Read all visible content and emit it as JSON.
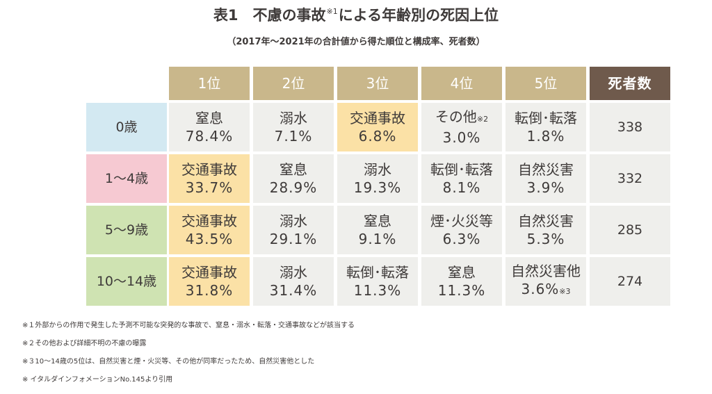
{
  "title": {
    "main": "表1　不慮の事故",
    "note_mark": "※1",
    "rest": "による年齢別の死因上位"
  },
  "subtitle": "（2017年～2021年の合計値から得た順位と構成率、死者数）",
  "columns": [
    "1位",
    "2位",
    "3位",
    "4位",
    "5位",
    "死者数"
  ],
  "colors": {
    "header_rank": "#c9b78b",
    "header_deaths": "#6f5a4c",
    "cell": "#efefec",
    "traffic_highlight": "#fbe1a6",
    "age_0": "#d3e9f2",
    "age_1_4": "#f6c9d2",
    "age_5_9": "#cfe3b2",
    "age_10_14": "#cfe3b2"
  },
  "rows": [
    {
      "age": "0歳",
      "causes": [
        {
          "cause": "窒息",
          "pct": "78.4%",
          "note": ""
        },
        {
          "cause": "溺水",
          "pct": "7.1%",
          "note": ""
        },
        {
          "cause": "交通事故",
          "pct": "6.8%",
          "note": ""
        },
        {
          "cause": "その他",
          "pct": "3.0%",
          "note": "※2"
        },
        {
          "cause": "転倒･転落",
          "pct": "1.8%",
          "note": ""
        }
      ],
      "deaths": "338"
    },
    {
      "age": "1～4歳",
      "causes": [
        {
          "cause": "交通事故",
          "pct": "33.7%",
          "note": ""
        },
        {
          "cause": "窒息",
          "pct": "28.9%",
          "note": ""
        },
        {
          "cause": "溺水",
          "pct": "19.3%",
          "note": ""
        },
        {
          "cause": "転倒･転落",
          "pct": "8.1%",
          "note": ""
        },
        {
          "cause": "自然災害",
          "pct": "3.9%",
          "note": ""
        }
      ],
      "deaths": "332"
    },
    {
      "age": "5～9歳",
      "causes": [
        {
          "cause": "交通事故",
          "pct": "43.5%",
          "note": ""
        },
        {
          "cause": "溺水",
          "pct": "29.1%",
          "note": ""
        },
        {
          "cause": "窒息",
          "pct": "9.1%",
          "note": ""
        },
        {
          "cause": "煙･火災等",
          "pct": "6.3%",
          "note": ""
        },
        {
          "cause": "自然災害",
          "pct": "5.3%",
          "note": ""
        }
      ],
      "deaths": "285"
    },
    {
      "age": "10～14歳",
      "causes": [
        {
          "cause": "交通事故",
          "pct": "31.8%",
          "note": ""
        },
        {
          "cause": "溺水",
          "pct": "31.4%",
          "note": ""
        },
        {
          "cause": "転倒･転落",
          "pct": "11.3%",
          "note": ""
        },
        {
          "cause": "窒息",
          "pct": "11.3%",
          "note": ""
        },
        {
          "cause": "自然災害他",
          "pct": "3.6%",
          "note": "※3"
        }
      ],
      "deaths": "274"
    }
  ],
  "notes": [
    "※１外部からの作用で発生した予測不可能な突発的な事故で、窒息・溺水・転落・交通事故などが該当する",
    "※２その他および詳細不明の不慮の曝露",
    "※３10～14歳の5位は、自然災害と煙・火災等、その他が同率だったため、自然災害他とした",
    "※ イタルダインフォメーションNo.145より引用"
  ]
}
